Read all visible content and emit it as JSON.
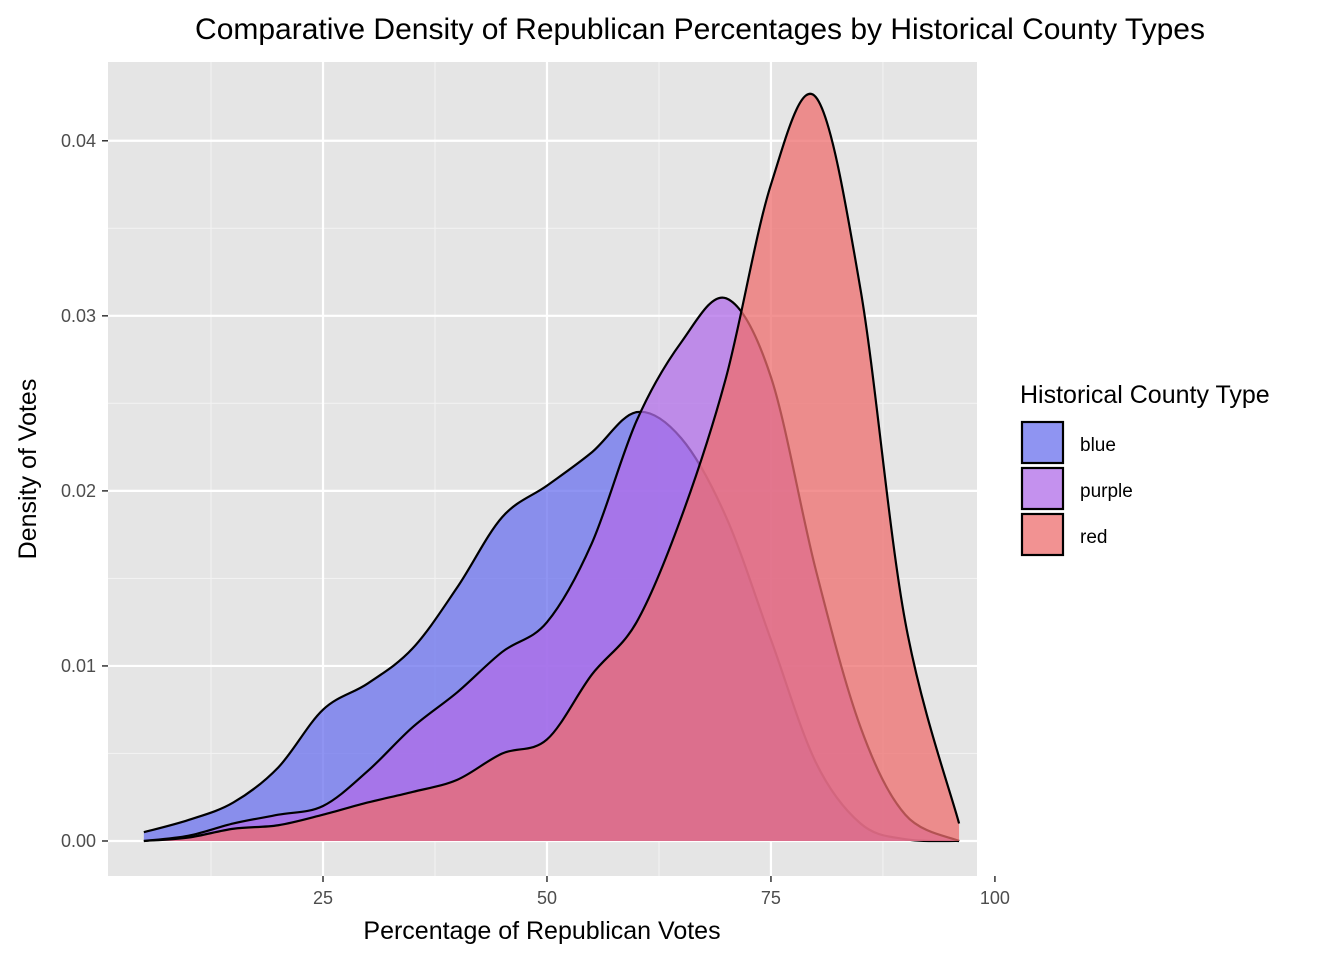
{
  "chart_data": {
    "type": "area",
    "title": "Comparative Density of Republican Percentages by Historical County Types",
    "xlabel": "Percentage of Republican Votes",
    "ylabel": "Density of Votes",
    "xlim": [
      1,
      98
    ],
    "ylim": [
      -0.002,
      0.0445
    ],
    "x_ticks": [
      25,
      50,
      75,
      100
    ],
    "y_ticks": [
      0.0,
      0.01,
      0.02,
      0.03,
      0.04
    ],
    "x_tick_labels": [
      "25",
      "50",
      "75",
      "100"
    ],
    "y_tick_labels": [
      "0.00",
      "0.01",
      "0.02",
      "0.03",
      "0.04"
    ],
    "grid": true,
    "legend": {
      "title": "Historical County Type",
      "position": "right"
    },
    "series": [
      {
        "name": "blue",
        "color": "#6970ee",
        "points": [
          [
            5,
            0.0005
          ],
          [
            10,
            0.0012
          ],
          [
            15,
            0.0022
          ],
          [
            20,
            0.0042
          ],
          [
            25,
            0.0075
          ],
          [
            30,
            0.009
          ],
          [
            35,
            0.011
          ],
          [
            40,
            0.0145
          ],
          [
            45,
            0.0185
          ],
          [
            50,
            0.0203
          ],
          [
            55,
            0.0222
          ],
          [
            60,
            0.0245
          ],
          [
            65,
            0.023
          ],
          [
            70,
            0.0185
          ],
          [
            75,
            0.0115
          ],
          [
            80,
            0.0045
          ],
          [
            85,
            0.001
          ],
          [
            90,
            0.0001
          ],
          [
            96,
            0.0
          ]
        ]
      },
      {
        "name": "purple",
        "color": "#b06ce8",
        "points": [
          [
            5,
            0.0
          ],
          [
            10,
            0.0003
          ],
          [
            15,
            0.001
          ],
          [
            20,
            0.0015
          ],
          [
            25,
            0.002
          ],
          [
            30,
            0.004
          ],
          [
            35,
            0.0065
          ],
          [
            40,
            0.0085
          ],
          [
            45,
            0.0108
          ],
          [
            50,
            0.0125
          ],
          [
            55,
            0.017
          ],
          [
            60,
            0.024
          ],
          [
            65,
            0.0285
          ],
          [
            70,
            0.031
          ],
          [
            75,
            0.0265
          ],
          [
            80,
            0.0155
          ],
          [
            85,
            0.0065
          ],
          [
            90,
            0.0015
          ],
          [
            96,
            0.0
          ]
        ]
      },
      {
        "name": "red",
        "color": "#ee6e6e",
        "points": [
          [
            5,
            0.0
          ],
          [
            10,
            0.0002
          ],
          [
            15,
            0.0007
          ],
          [
            20,
            0.0009
          ],
          [
            25,
            0.0015
          ],
          [
            30,
            0.0022
          ],
          [
            35,
            0.0028
          ],
          [
            40,
            0.0035
          ],
          [
            45,
            0.005
          ],
          [
            50,
            0.0058
          ],
          [
            55,
            0.0095
          ],
          [
            60,
            0.0125
          ],
          [
            65,
            0.0185
          ],
          [
            70,
            0.0265
          ],
          [
            75,
            0.0375
          ],
          [
            80,
            0.0425
          ],
          [
            85,
            0.0315
          ],
          [
            90,
            0.0125
          ],
          [
            96,
            0.001
          ]
        ]
      }
    ]
  }
}
